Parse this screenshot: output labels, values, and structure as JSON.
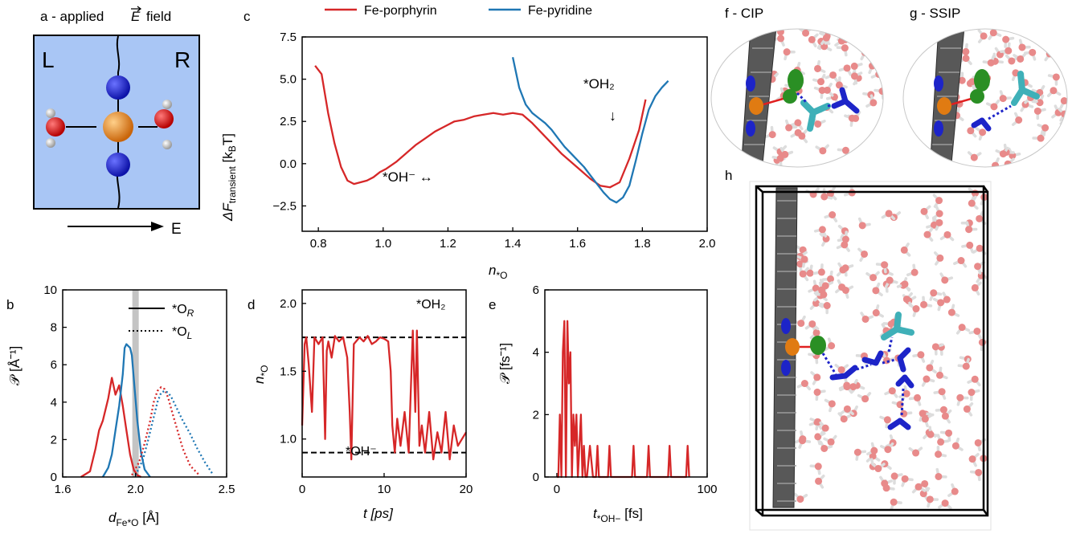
{
  "panels": {
    "a": {
      "label": "a - applied",
      "field_symbol": "E",
      "field_word": "field",
      "left": "L",
      "right": "R",
      "arrow_label": "E"
    },
    "b": {
      "label": "b",
      "xlabel": "d",
      "xlabel_sub": "Fe*O",
      "xlabel_unit": "[Å]",
      "ylabel": "𝒫 [Å⁻¹]",
      "legend": [
        {
          "label": "*O",
          "sub": "R",
          "style": "solid"
        },
        {
          "label": "*O",
          "sub": "L",
          "style": "dotted"
        }
      ]
    },
    "c": {
      "label": "c",
      "xlabel": "n",
      "xlabel_sub": "*O",
      "ylabel": "ΔF",
      "ylabel_sub": "transient",
      "ylabel_unit": "[k",
      "ylabel_unit_sub": "B",
      "ylabel_unit_end": "T]",
      "legend": [
        "Fe-porphyrin",
        "Fe-pyridine"
      ],
      "annotations": [
        "*OH₂",
        "↓",
        "*OH⁻ ↔"
      ]
    },
    "d": {
      "label": "d",
      "xlabel": "t [ps]",
      "ylabel": "n",
      "ylabel_sub": "*O",
      "annotations": [
        "*OH₂",
        "*OH⁻"
      ]
    },
    "e": {
      "label": "e",
      "xlabel": "t",
      "xlabel_sub": "*OH−",
      "xlabel_unit": "[fs]",
      "ylabel": "𝒫 [fs⁻¹]"
    },
    "f": {
      "label": "f - CIP"
    },
    "g": {
      "label": "g - SSIP"
    },
    "h": {
      "label": "h"
    }
  },
  "colors": {
    "red": "#d62728",
    "blue": "#1f77b4",
    "cyan": "#3fb0b8",
    "navy": "#1d24c8",
    "orange": "#e07b12",
    "green": "#2a8f24",
    "gray": "#4a4a4a",
    "panel_a_bg": "#a9c6f5"
  },
  "chart_data": [
    {
      "panel": "c",
      "type": "line",
      "xlim": [
        0.75,
        2.0
      ],
      "ylim": [
        -4.0,
        7.5
      ],
      "xticks": [
        0.8,
        1.0,
        1.2,
        1.4,
        1.6,
        1.8,
        2.0
      ],
      "yticks": [
        -2.5,
        0.0,
        2.5,
        5.0,
        7.5
      ],
      "xtick_labels": [
        "0.8",
        "1.0",
        "1.2",
        "1.4",
        "1.6",
        "1.8",
        "2.0"
      ],
      "ytick_labels": [
        "−2.5",
        "0.0",
        "2.5",
        "5.0",
        "7.5"
      ],
      "series": [
        {
          "name": "Fe-porphyrin",
          "color": "#d62728",
          "x": [
            0.79,
            0.81,
            0.83,
            0.85,
            0.87,
            0.89,
            0.91,
            0.93,
            0.95,
            0.97,
            0.99,
            1.01,
            1.04,
            1.07,
            1.1,
            1.13,
            1.16,
            1.19,
            1.22,
            1.25,
            1.28,
            1.31,
            1.34,
            1.37,
            1.4,
            1.43,
            1.46,
            1.49,
            1.52,
            1.55,
            1.58,
            1.61,
            1.64,
            1.67,
            1.7,
            1.73,
            1.76,
            1.79,
            1.81
          ],
          "y": [
            5.8,
            5.3,
            3.0,
            1.2,
            -0.2,
            -1.0,
            -1.2,
            -1.1,
            -1.0,
            -0.8,
            -0.5,
            -0.3,
            0.1,
            0.6,
            1.1,
            1.5,
            1.9,
            2.2,
            2.5,
            2.6,
            2.8,
            2.9,
            3.0,
            2.9,
            3.0,
            2.9,
            2.4,
            1.8,
            1.2,
            0.6,
            0.1,
            -0.4,
            -0.9,
            -1.3,
            -1.4,
            -1.1,
            0.3,
            2.0,
            3.8
          ]
        },
        {
          "name": "Fe-pyridine",
          "color": "#1f77b4",
          "x": [
            1.4,
            1.42,
            1.44,
            1.46,
            1.48,
            1.5,
            1.52,
            1.54,
            1.56,
            1.58,
            1.6,
            1.62,
            1.64,
            1.66,
            1.68,
            1.7,
            1.72,
            1.74,
            1.76,
            1.78,
            1.8,
            1.82,
            1.84,
            1.86,
            1.88
          ],
          "y": [
            6.3,
            4.5,
            3.5,
            3.0,
            2.7,
            2.4,
            2.0,
            1.5,
            1.0,
            0.6,
            0.2,
            -0.2,
            -0.7,
            -1.2,
            -1.7,
            -2.1,
            -2.3,
            -2.0,
            -1.3,
            0.2,
            1.8,
            3.2,
            4.0,
            4.5,
            4.9
          ]
        }
      ]
    },
    {
      "panel": "b",
      "type": "line",
      "xlim": [
        1.6,
        2.5
      ],
      "ylim": [
        0,
        10
      ],
      "xticks": [
        1.6,
        2.0,
        2.5
      ],
      "yticks": [
        0,
        2,
        4,
        6,
        8,
        10
      ],
      "xtick_labels": [
        "1.6",
        "2.0",
        "2.5"
      ],
      "ytick_labels": [
        "0",
        "2",
        "4",
        "6",
        "8",
        "10"
      ],
      "shade_x": 2.0,
      "series": [
        {
          "color": "#d62728",
          "style": "solid",
          "x": [
            1.7,
            1.75,
            1.78,
            1.8,
            1.82,
            1.85,
            1.87,
            1.89,
            1.91,
            1.93,
            1.95,
            1.97,
            1.99,
            2.01,
            2.03
          ],
          "y": [
            0.0,
            0.3,
            1.5,
            2.5,
            3.0,
            4.2,
            5.3,
            4.4,
            4.9,
            3.8,
            2.5,
            1.2,
            0.4,
            0.1,
            0.0
          ]
        },
        {
          "color": "#1f77b4",
          "style": "solid",
          "x": [
            1.82,
            1.85,
            1.87,
            1.89,
            1.91,
            1.93,
            1.94,
            1.95,
            1.96,
            1.97,
            1.98,
            1.99,
            2.01,
            2.03,
            2.05,
            2.08
          ],
          "y": [
            0.0,
            0.5,
            1.2,
            2.5,
            3.8,
            5.5,
            6.9,
            7.1,
            7.0,
            6.9,
            6.5,
            5.3,
            3.0,
            1.3,
            0.4,
            0.0
          ]
        },
        {
          "color": "#d62728",
          "style": "dotted",
          "x": [
            1.98,
            2.02,
            2.05,
            2.08,
            2.1,
            2.12,
            2.14,
            2.16,
            2.18,
            2.2,
            2.23,
            2.26,
            2.3,
            2.35
          ],
          "y": [
            0.1,
            0.8,
            1.8,
            3.0,
            4.0,
            4.6,
            4.8,
            4.7,
            4.2,
            3.5,
            2.5,
            1.5,
            0.6,
            0.1
          ]
        },
        {
          "color": "#1f77b4",
          "style": "dotted",
          "x": [
            2.0,
            2.04,
            2.07,
            2.1,
            2.12,
            2.14,
            2.16,
            2.18,
            2.2,
            2.23,
            2.26,
            2.3,
            2.34,
            2.38,
            2.42
          ],
          "y": [
            0.1,
            0.9,
            2.0,
            3.2,
            4.0,
            4.5,
            4.6,
            4.5,
            4.2,
            3.6,
            3.0,
            2.3,
            1.5,
            0.8,
            0.2
          ]
        }
      ]
    },
    {
      "panel": "d",
      "type": "line",
      "xlim": [
        0,
        20
      ],
      "ylim": [
        0.72,
        2.1
      ],
      "xticks": [
        0,
        10,
        20
      ],
      "yticks": [
        1.0,
        1.5,
        2.0
      ],
      "xtick_labels": [
        "0",
        "10",
        "20"
      ],
      "ytick_labels": [
        "1.0",
        "1.5",
        "2.0"
      ],
      "hlines": [
        1.75,
        0.9
      ],
      "series": [
        {
          "color": "#d62728",
          "x": [
            0,
            0.3,
            0.5,
            0.8,
            1.2,
            1.5,
            2.0,
            2.5,
            2.8,
            3.0,
            3.2,
            3.6,
            4.0,
            4.5,
            5.0,
            5.5,
            5.8,
            6.0,
            6.3,
            7.0,
            7.5,
            8.0,
            8.5,
            9.0,
            9.5,
            10.0,
            10.5,
            10.8,
            11.0,
            11.3,
            11.6,
            12.0,
            12.5,
            13.0,
            13.5,
            13.8,
            14.0,
            14.3,
            14.6,
            15.0,
            15.5,
            16.0,
            16.5,
            17.0,
            17.5,
            18.0,
            18.5,
            19.0,
            19.5,
            20.0
          ],
          "y": [
            1.1,
            1.7,
            1.75,
            1.55,
            1.2,
            1.75,
            1.7,
            1.75,
            1.0,
            1.65,
            1.72,
            1.6,
            1.76,
            1.72,
            1.75,
            1.6,
            1.2,
            0.85,
            1.7,
            1.75,
            1.72,
            1.76,
            1.7,
            1.72,
            1.75,
            1.74,
            1.72,
            1.5,
            1.1,
            0.9,
            1.15,
            0.95,
            1.2,
            0.9,
            1.8,
            1.2,
            1.8,
            0.95,
            1.1,
            0.9,
            1.2,
            0.85,
            1.05,
            0.9,
            1.2,
            0.85,
            1.1,
            0.95,
            1.0,
            1.05
          ]
        }
      ]
    },
    {
      "panel": "e",
      "type": "line",
      "xlim": [
        -8,
        100
      ],
      "ylim": [
        0,
        6
      ],
      "xticks": [
        0,
        100
      ],
      "yticks": [
        0,
        2,
        4,
        6
      ],
      "xtick_labels": [
        "0",
        "100"
      ],
      "ytick_labels": [
        "0",
        "2",
        "4",
        "6"
      ],
      "series": [
        {
          "color": "#d62728",
          "x": [
            0,
            1,
            2,
            3,
            4,
            5,
            6,
            7,
            8,
            9,
            10,
            11,
            12,
            13,
            14,
            15,
            16,
            17,
            18,
            19,
            20,
            22,
            24,
            26,
            27,
            28,
            30,
            32,
            34,
            35,
            36,
            38,
            50,
            51,
            52,
            60,
            61,
            62,
            74,
            75,
            76,
            86,
            87,
            88
          ],
          "y": [
            0,
            0,
            2,
            0,
            4,
            5,
            0,
            5,
            3,
            4,
            0,
            2,
            1,
            2,
            0,
            1,
            2,
            0,
            1,
            0,
            0,
            1,
            0,
            0,
            1,
            0,
            0,
            0,
            0,
            1,
            0,
            0,
            0,
            1,
            0,
            0,
            1,
            0,
            0,
            1,
            0,
            0,
            1,
            0
          ]
        }
      ]
    }
  ]
}
